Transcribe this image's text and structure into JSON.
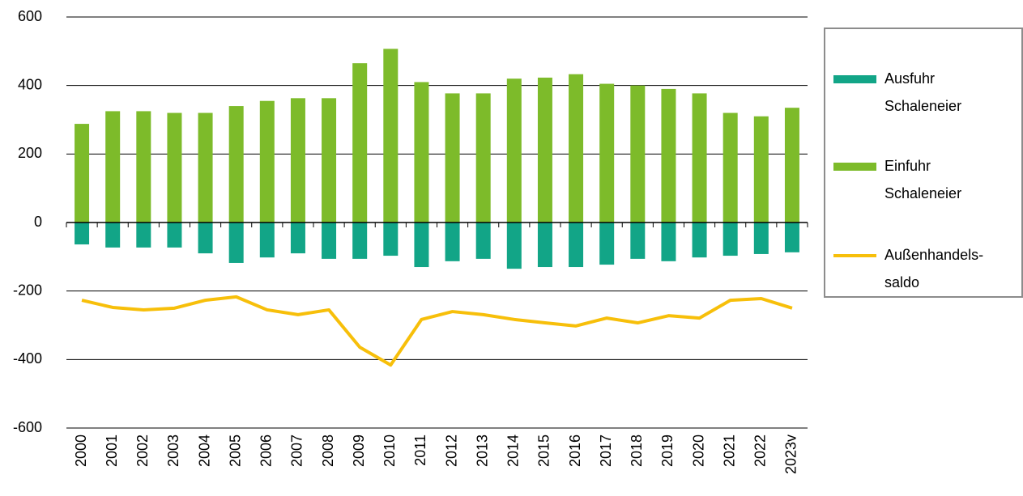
{
  "chart_data": {
    "type": "bar",
    "categories": [
      "2000",
      "2001",
      "2002",
      "2003",
      "2004",
      "2005",
      "2006",
      "2007",
      "2008",
      "2009",
      "2010",
      "2011",
      "2012",
      "2013",
      "2014",
      "2015",
      "2016",
      "2017",
      "2018",
      "2019",
      "2020",
      "2021",
      "2022",
      "2023v"
    ],
    "series": [
      {
        "name": "Ausfuhr Schaleneier",
        "color": "#12a587",
        "type": "bar",
        "values": [
          -64,
          -73,
          -73,
          -73,
          -90,
          -118,
          -102,
          -90,
          -106,
          -106,
          -97,
          -130,
          -113,
          -106,
          -135,
          -130,
          -130,
          -123,
          -106,
          -113,
          -102,
          -97,
          -92,
          -87
        ]
      },
      {
        "name": "Einfuhr Schaleneier",
        "color": "#7dbb2a",
        "type": "bar",
        "values": [
          288,
          325,
          325,
          320,
          320,
          340,
          355,
          363,
          363,
          465,
          507,
          410,
          377,
          377,
          420,
          423,
          433,
          405,
          400,
          390,
          377,
          320,
          310,
          335
        ]
      },
      {
        "name": "Außenhandels-saldo",
        "color": "#f7bf0a",
        "type": "line",
        "values": [
          -227,
          -248,
          -255,
          -250,
          -227,
          -217,
          -255,
          -269,
          -255,
          -364,
          -416,
          -283,
          -260,
          -269,
          -283,
          -293,
          -302,
          -279,
          -293,
          -272,
          -279,
          -227,
          -222,
          -250
        ]
      }
    ],
    "ylim": [
      -600,
      600
    ],
    "yticks": [
      -600,
      -400,
      -200,
      0,
      200,
      400,
      600
    ],
    "grid": true,
    "legend": "right"
  }
}
